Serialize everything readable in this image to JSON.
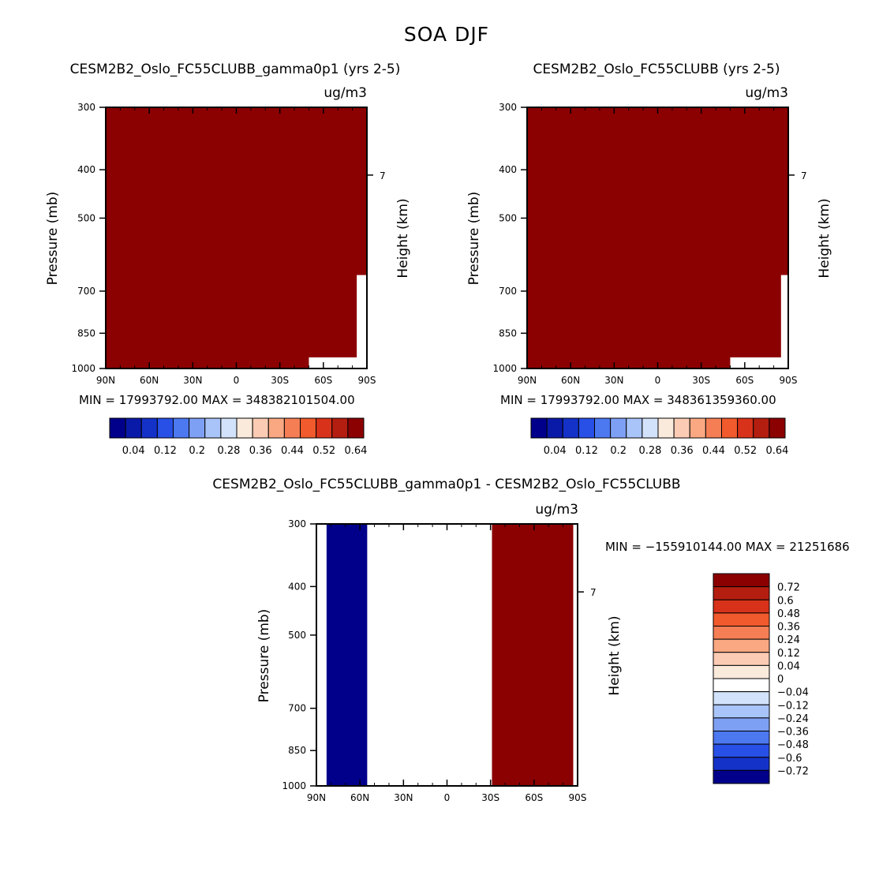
{
  "figure_title": "SOA DJF",
  "colors": {
    "dark_red": "#8b0000",
    "dark_blue": "#00008b",
    "white": "#ffffff"
  },
  "chart_data": [
    {
      "type": "heatmap",
      "title": "CESM2B2_Oslo_FC55CLUBB_gamma0p1 (yrs 2-5)",
      "units": "ug/m3",
      "xlabel": "",
      "ylabel": "Pressure (mb)",
      "ylabel_right": "Height (km)",
      "x_ticks": [
        "90N",
        "60N",
        "30N",
        "0",
        "30S",
        "60S",
        "90S"
      ],
      "x_tick_values": [
        90,
        60,
        30,
        0,
        -30,
        -60,
        -90
      ],
      "y_ticks": [
        "300",
        "400",
        "500",
        "700",
        "850",
        "1000"
      ],
      "y_tick_values": [
        300,
        400,
        500,
        700,
        850,
        1000
      ],
      "y_log_scale": true,
      "right_ticks": [
        "7"
      ],
      "right_tick_pressure": [
        410
      ],
      "xlim": [
        90,
        -90
      ],
      "ylim": [
        1000,
        300
      ],
      "min_max_text": "MIN = 17993792.00   MAX = 348382101504.00",
      "fill_color": "#8b0000",
      "missing_regions": [
        {
          "lat_from": -83,
          "lat_to": -90,
          "p_from": 650,
          "p_to": 1000
        },
        {
          "lat_from": -50,
          "lat_to": -90,
          "p_from": 950,
          "p_to": 1000
        }
      ],
      "colorbar": {
        "levels": [
          "0.04",
          "0.12",
          "0.2",
          "0.28",
          "0.36",
          "0.44",
          "0.52",
          "0.64"
        ],
        "colors": [
          "#00008b",
          "#0a1aa8",
          "#1432c8",
          "#2850e6",
          "#4c78f0",
          "#7ea0f4",
          "#a8c4f8",
          "#d2e2fa",
          "#faeadc",
          "#fccbb4",
          "#f9a882",
          "#f57e55",
          "#f05a2c",
          "#d8321a",
          "#b41e10",
          "#8b0000"
        ]
      }
    },
    {
      "type": "heatmap",
      "title": "CESM2B2_Oslo_FC55CLUBB (yrs 2-5)",
      "units": "ug/m3",
      "xlabel": "",
      "ylabel": "Pressure (mb)",
      "ylabel_right": "Height (km)",
      "x_ticks": [
        "90N",
        "60N",
        "30N",
        "0",
        "30S",
        "60S",
        "90S"
      ],
      "x_tick_values": [
        90,
        60,
        30,
        0,
        -30,
        -60,
        -90
      ],
      "y_ticks": [
        "300",
        "400",
        "500",
        "700",
        "850",
        "1000"
      ],
      "y_tick_values": [
        300,
        400,
        500,
        700,
        850,
        1000
      ],
      "y_log_scale": true,
      "right_ticks": [
        "7"
      ],
      "right_tick_pressure": [
        410
      ],
      "xlim": [
        90,
        -90
      ],
      "ylim": [
        1000,
        300
      ],
      "min_max_text": "MIN = 17993792.00   MAX = 348361359360.00",
      "fill_color": "#8b0000",
      "missing_regions": [
        {
          "lat_from": -85,
          "lat_to": -90,
          "p_from": 650,
          "p_to": 1000
        },
        {
          "lat_from": -50,
          "lat_to": -90,
          "p_from": 950,
          "p_to": 1000
        }
      ],
      "colorbar": {
        "levels": [
          "0.04",
          "0.12",
          "0.2",
          "0.28",
          "0.36",
          "0.44",
          "0.52",
          "0.64"
        ],
        "colors": [
          "#00008b",
          "#0a1aa8",
          "#1432c8",
          "#2850e6",
          "#4c78f0",
          "#7ea0f4",
          "#a8c4f8",
          "#d2e2fa",
          "#faeadc",
          "#fccbb4",
          "#f9a882",
          "#f57e55",
          "#f05a2c",
          "#d8321a",
          "#b41e10",
          "#8b0000"
        ]
      }
    },
    {
      "type": "heatmap",
      "title": "CESM2B2_Oslo_FC55CLUBB_gamma0p1 - CESM2B2_Oslo_FC55CLUBB",
      "units": "ug/m3",
      "xlabel": "",
      "ylabel": "Pressure (mb)",
      "ylabel_right": "Height (km)",
      "x_ticks": [
        "90N",
        "60N",
        "30N",
        "0",
        "30S",
        "60S",
        "90S"
      ],
      "x_tick_values": [
        90,
        60,
        30,
        0,
        -30,
        -60,
        -90
      ],
      "y_ticks": [
        "300",
        "400",
        "500",
        "700",
        "850",
        "1000"
      ],
      "y_tick_values": [
        300,
        400,
        500,
        700,
        850,
        1000
      ],
      "y_log_scale": true,
      "right_ticks": [
        "7"
      ],
      "right_tick_pressure": [
        410
      ],
      "xlim": [
        90,
        -90
      ],
      "ylim": [
        1000,
        300
      ],
      "min_max_text": "MIN = −155910144.00   MAX = 21251686",
      "bands": [
        {
          "lat_from": 83,
          "lat_to": 55,
          "color": "#00008b"
        },
        {
          "lat_from": -31,
          "lat_to": -87,
          "color": "#8b0000"
        }
      ],
      "colorbar": {
        "levels": [
          "0.72",
          "0.6",
          "0.48",
          "0.36",
          "0.24",
          "0.12",
          "0.04",
          "0",
          "−0.04",
          "−0.12",
          "−0.24",
          "−0.36",
          "−0.48",
          "−0.6",
          "−0.72"
        ],
        "colors": [
          "#8b0000",
          "#b41e10",
          "#d8321a",
          "#f05a2c",
          "#f57e55",
          "#f9a882",
          "#fccbb4",
          "#faeadc",
          "#ffffff",
          "#d2e2fa",
          "#a8c4f8",
          "#7ea0f4",
          "#4c78f0",
          "#2850e6",
          "#1432c8",
          "#00008b"
        ]
      }
    }
  ]
}
